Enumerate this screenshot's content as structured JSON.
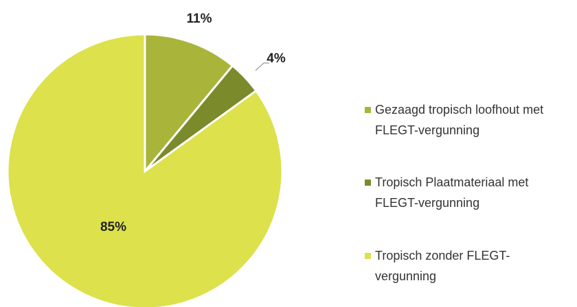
{
  "chart_data": {
    "type": "pie",
    "series": [
      {
        "name": "Gezaagd tropisch loofhout met FLEGT-vergunning",
        "color": "#a9b43b",
        "values": [
          11
        ],
        "value_labels": [
          "11%"
        ]
      },
      {
        "name": "Tropisch Plaatmateriaal met FLEGT-vergunning",
        "color": "#7b8a2b",
        "values": [
          4
        ],
        "value_labels": [
          "4%"
        ]
      },
      {
        "name": "Tropisch zonder FLEGT-vergunning",
        "color": "#dde14b",
        "values": [
          85
        ],
        "value_labels": [
          "85%"
        ]
      }
    ]
  }
}
